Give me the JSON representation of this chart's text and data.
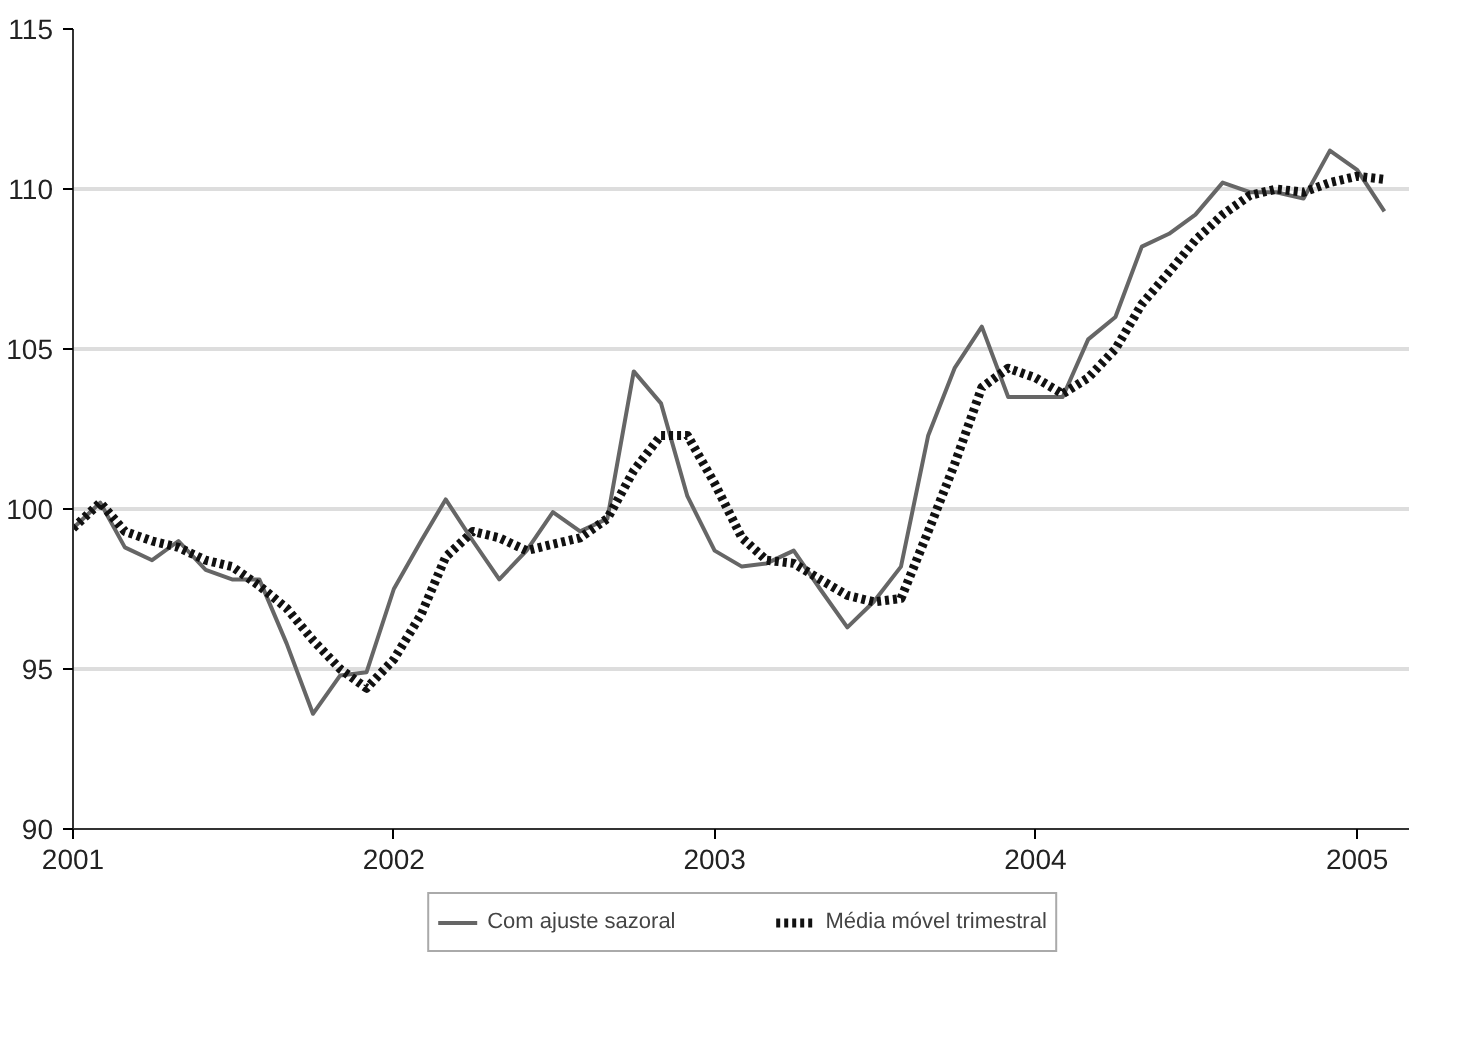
{
  "chart_data": {
    "type": "line",
    "x": [
      "2001-01",
      "2001-02",
      "2001-03",
      "2001-04",
      "2001-05",
      "2001-06",
      "2001-07",
      "2001-08",
      "2001-09",
      "2001-10",
      "2001-11",
      "2001-12",
      "2002-01",
      "2002-02",
      "2002-03",
      "2002-04",
      "2002-05",
      "2002-06",
      "2002-07",
      "2002-08",
      "2002-09",
      "2002-10",
      "2002-11",
      "2002-12",
      "2003-01",
      "2003-02",
      "2003-03",
      "2003-04",
      "2003-05",
      "2003-06",
      "2003-07",
      "2003-08",
      "2003-09",
      "2003-10",
      "2003-11",
      "2003-12",
      "2004-01",
      "2004-02",
      "2004-03",
      "2004-04",
      "2004-05",
      "2004-06",
      "2004-07",
      "2004-08",
      "2004-09",
      "2004-10",
      "2004-11",
      "2004-12",
      "2005-01",
      "2005-02"
    ],
    "series": [
      {
        "name": "Com ajuste sazoral",
        "color": "#666666",
        "line_style": "solid",
        "values": [
          99.4,
          100.2,
          98.8,
          98.4,
          99.0,
          98.1,
          97.8,
          97.8,
          95.8,
          93.6,
          94.8,
          94.9,
          97.5,
          99.0,
          100.3,
          99.0,
          97.8,
          98.7,
          99.9,
          99.3,
          99.7,
          104.3,
          103.3,
          100.4,
          98.7,
          98.2,
          98.3,
          98.7,
          97.5,
          96.3,
          97.1,
          98.2,
          102.3,
          104.4,
          105.7,
          103.5,
          103.5,
          103.5,
          105.3,
          106.0,
          108.2,
          108.6,
          109.2,
          110.2,
          109.9,
          109.9,
          109.7,
          111.2,
          110.6,
          109.3
        ]
      },
      {
        "name": "Média móvel trimestral",
        "color": "#111111",
        "line_style": "dotted",
        "values": [
          99.4,
          100.2,
          99.3,
          99.0,
          98.8,
          98.4,
          98.2,
          97.6,
          96.9,
          95.9,
          95.0,
          94.4,
          95.3,
          96.7,
          98.5,
          99.3,
          99.1,
          98.7,
          98.9,
          99.1,
          99.7,
          101.2,
          102.3,
          102.3,
          100.8,
          99.1,
          98.4,
          98.3,
          97.8,
          97.3,
          97.1,
          97.2,
          99.3,
          101.4,
          103.8,
          104.4,
          104.1,
          103.6,
          104.1,
          105.0,
          106.4,
          107.4,
          108.4,
          109.2,
          109.8,
          110.0,
          109.9,
          110.2,
          110.4,
          110.3
        ]
      }
    ],
    "xlim": [
      "2001-01",
      "2005-03"
    ],
    "xticks": [
      {
        "value": "2001-01",
        "label": "2001"
      },
      {
        "value": "2002-01",
        "label": "2002"
      },
      {
        "value": "2003-01",
        "label": "2003"
      },
      {
        "value": "2004-01",
        "label": "2004"
      },
      {
        "value": "2005-01",
        "label": "2005"
      }
    ],
    "ylim": [
      90,
      115
    ],
    "yticks": [
      90,
      95,
      100,
      105,
      110,
      115
    ],
    "grid": "y",
    "legend": "bottom",
    "marker": "none"
  }
}
